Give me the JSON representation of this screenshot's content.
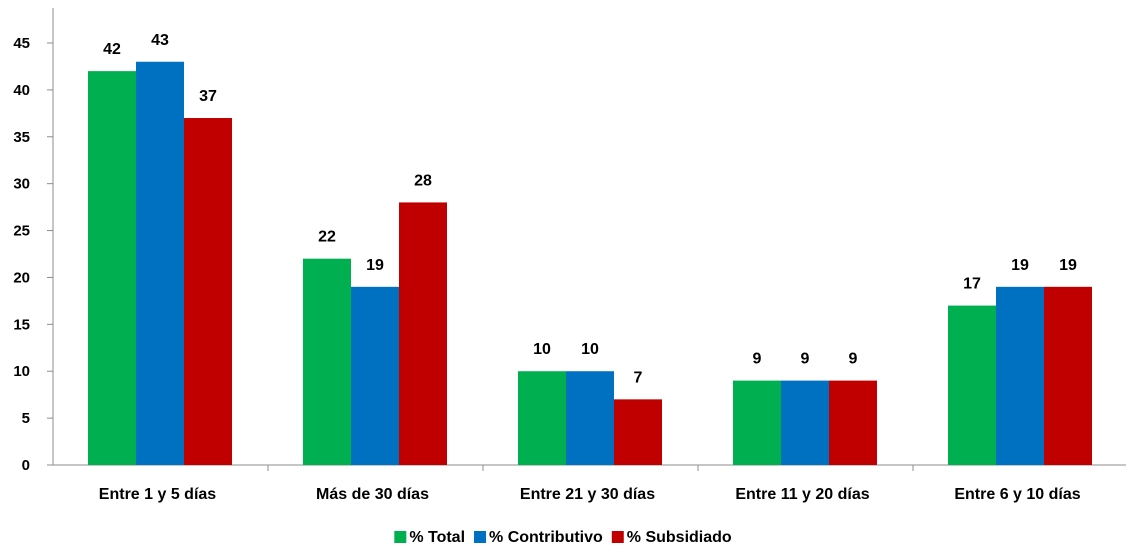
{
  "chart_data": {
    "type": "bar",
    "categories": [
      "Entre 1 y 5 días",
      "Más de 30 días",
      "Entre 21 y 30 días",
      "Entre 11 y 20 días",
      "Entre 6 y 10 días"
    ],
    "series": [
      {
        "name": "% Total",
        "color": "#00b050",
        "values": [
          42,
          22,
          10,
          9,
          17
        ]
      },
      {
        "name": "% Contributivo",
        "color": "#0070c0",
        "values": [
          43,
          19,
          10,
          9,
          19
        ]
      },
      {
        "name": "% Subsidiado",
        "color": "#c00000",
        "values": [
          37,
          28,
          7,
          9,
          19
        ]
      }
    ],
    "yticks": [
      "0",
      "5",
      "10",
      "15",
      "20",
      "25",
      "30",
      "35",
      "40",
      "45"
    ],
    "ylim": [
      0,
      45
    ],
    "grid": false,
    "legend_position": "bottom",
    "title": "",
    "xlabel": "",
    "ylabel": ""
  }
}
